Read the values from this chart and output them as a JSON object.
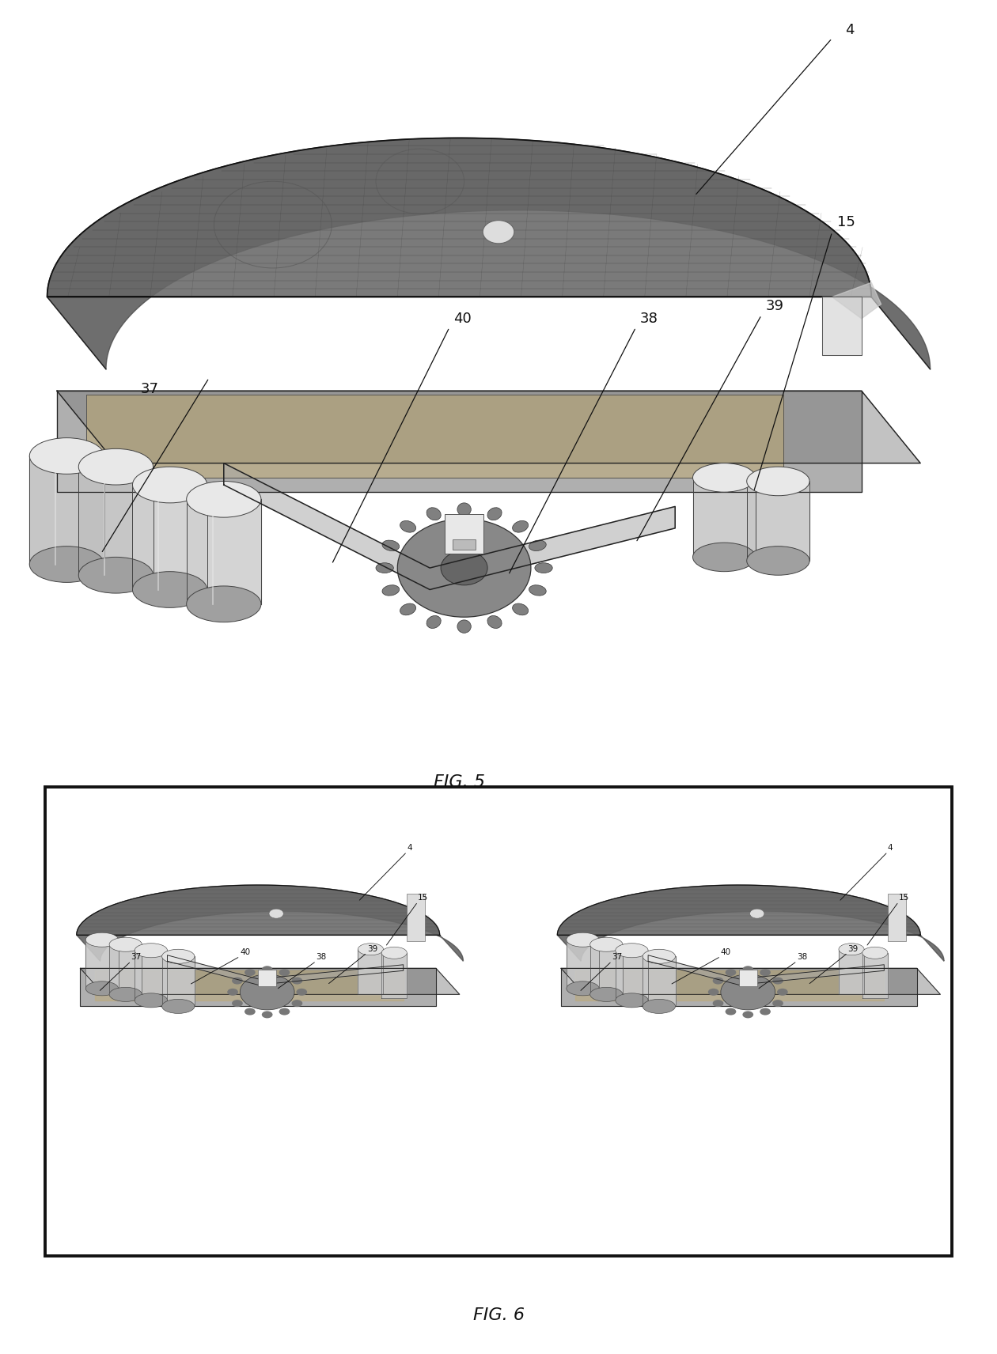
{
  "fig_width": 12.4,
  "fig_height": 16.92,
  "bg_color": "#ffffff",
  "fig5_title": "FIG. 5",
  "fig6_title": "FIG. 6"
}
